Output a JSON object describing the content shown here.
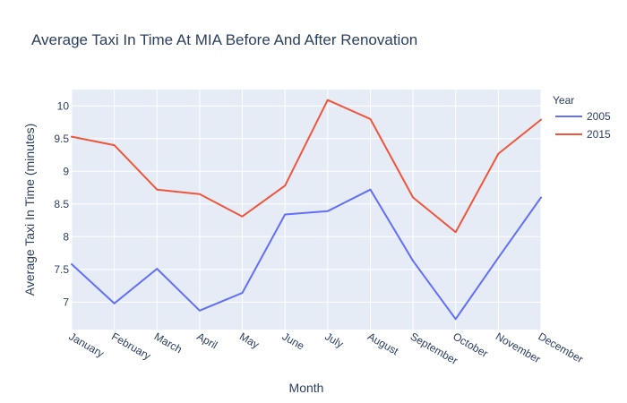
{
  "chart_data": {
    "type": "line",
    "title": "Average Taxi In Time At MIA Before And After Renovation",
    "xlabel": "Month",
    "ylabel": "Average Taxi In Time (minutes)",
    "categories": [
      "January",
      "February",
      "March",
      "April",
      "May",
      "June",
      "July",
      "August",
      "September",
      "October",
      "November",
      "December"
    ],
    "ylim": [
      6.58,
      10.25
    ],
    "yticks": [
      7,
      7.5,
      8,
      8.5,
      9,
      9.5,
      10
    ],
    "grid": true,
    "legend": {
      "title": "Year",
      "position": "top-right"
    },
    "series": [
      {
        "name": "2005",
        "color": "#636efa",
        "values": [
          7.58,
          6.98,
          7.51,
          6.87,
          7.14,
          8.34,
          8.39,
          8.72,
          7.63,
          6.74,
          7.68,
          8.6
        ]
      },
      {
        "name": "2015",
        "color": "#ef553b",
        "values": [
          9.53,
          9.4,
          8.72,
          8.65,
          8.31,
          8.78,
          10.09,
          9.8,
          8.6,
          8.07,
          9.27,
          9.79
        ]
      }
    ]
  }
}
